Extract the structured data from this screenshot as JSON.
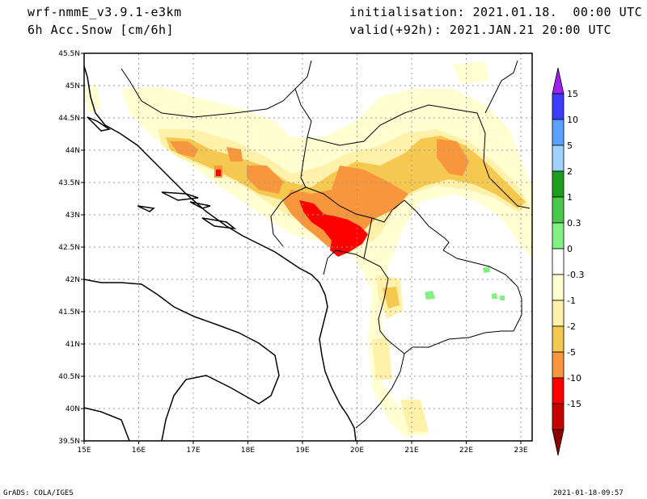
{
  "header": {
    "model": "wrf-nmmE_v3.9.1-e3km",
    "field": "6h Acc.Snow [cm/6h]",
    "init": "initialisation: 2021.01.18.  00:00 UTC",
    "valid": "valid(+92h): 2021.JAN.21 20:00 UTC"
  },
  "footer": {
    "left": "GrADS: COLA/IGES",
    "right": "2021-01-18-09:57"
  },
  "map": {
    "lon_labels": [
      "15E",
      "16E",
      "17E",
      "18E",
      "19E",
      "20E",
      "21E",
      "22E",
      "23E"
    ],
    "lat_labels": [
      "45.5N",
      "45N",
      "44.5N",
      "44N",
      "43.5N",
      "43N",
      "42.5N",
      "42N",
      "41.5N",
      "41N",
      "40.5N",
      "40N",
      "39.5N"
    ]
  },
  "colorbar": {
    "labels": [
      "15",
      "10",
      "5",
      "2",
      "1",
      "0.3",
      "0",
      "-0.3",
      "-1",
      "-2",
      "-5",
      "-10",
      "-15"
    ],
    "colors": [
      "#a020f0",
      "#3c3cff",
      "#5aa0ff",
      "#a0d2ff",
      "#1e9e1e",
      "#4bc84b",
      "#82f082",
      "#ffffff",
      "#ffffd2",
      "#fff0aa",
      "#f5c850",
      "#f7963c",
      "#ff0000",
      "#c80000",
      "#8c0000"
    ]
  },
  "legend_colors": {
    "light": "#ffffd2",
    "pale": "#fff0aa",
    "yellow": "#f5c850",
    "orange": "#f7963c",
    "red": "#ff0000",
    "green": "#82f082"
  }
}
